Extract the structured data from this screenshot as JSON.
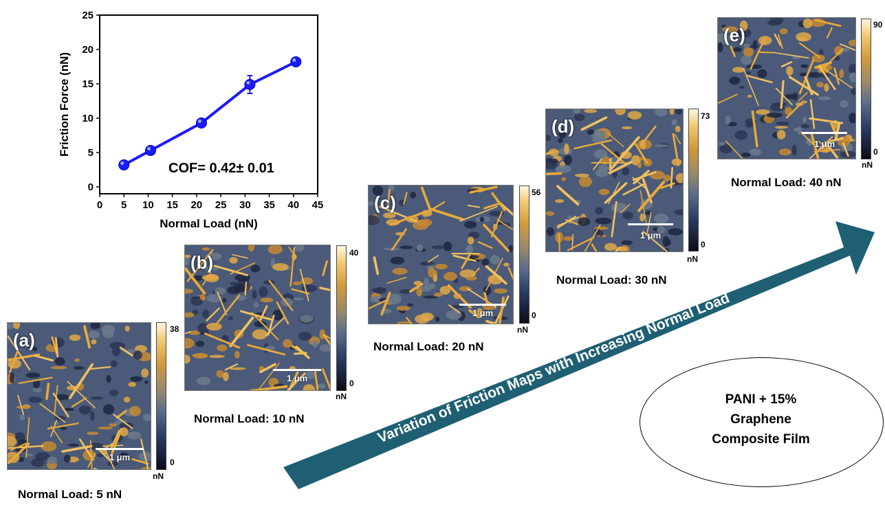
{
  "chart_data": {
    "type": "line",
    "xlabel": "Normal Load (nN)",
    "ylabel": "Friction Force (nN)",
    "xlim": [
      0,
      45
    ],
    "ylim": [
      -1,
      25
    ],
    "xticks": [
      "0",
      "5",
      "10",
      "15",
      "20",
      "25",
      "30",
      "35",
      "40",
      "45"
    ],
    "yticks": [
      "0",
      "5",
      "10",
      "15",
      "20",
      "25"
    ],
    "series": [
      {
        "x": [
          5,
          10.5,
          21,
          31,
          40.5
        ],
        "y": [
          3.2,
          5.3,
          9.3,
          14.9,
          18.2
        ],
        "yerr": [
          0.3,
          0.3,
          0.3,
          1.3,
          0.3
        ],
        "color": "#1a1aff"
      }
    ],
    "annotation": "COF= 0.42± 0.01",
    "grid": false
  },
  "panels": [
    {
      "letter": "(a)",
      "scale": "1 μm",
      "cbar_max": "38",
      "cbar_min": "0",
      "unit": "nN",
      "caption": "Normal Load: 5 nN"
    },
    {
      "letter": "(b)",
      "scale": "1 μm",
      "cbar_max": "40",
      "cbar_min": "0",
      "unit": "nN",
      "caption": "Normal Load: 10 nN"
    },
    {
      "letter": "(c)",
      "scale": "1 μm",
      "cbar_max": "56",
      "cbar_min": "0",
      "unit": "nN",
      "caption": "Normal Load: 20 nN"
    },
    {
      "letter": "(d)",
      "scale": "1 μm",
      "cbar_max": "73",
      "cbar_min": "0",
      "unit": "nN",
      "caption": "Normal Load: 30 nN"
    },
    {
      "letter": "(e)",
      "scale": "1 μm",
      "cbar_max": "90",
      "cbar_min": "0",
      "unit": "nN",
      "caption": "Normal Load: 40 nN"
    }
  ],
  "arrow_label": "Variation of Friction Maps with Increasing Normal Load",
  "sample_label": [
    "PANI + 15%",
    "Graphene",
    "Composite Film"
  ],
  "colors": {
    "series": "#1a1aff",
    "arrow": "#1f5f73"
  }
}
